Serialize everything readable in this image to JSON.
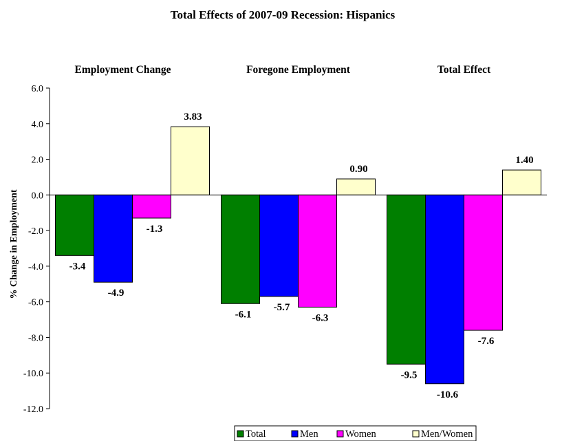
{
  "chart_data": {
    "type": "bar",
    "title": "Total Effects of 2007-09 Recession: Hispanics",
    "ylabel": "% Change in Employment",
    "xlabel": "",
    "ylim": [
      -12.0,
      6.0
    ],
    "yticks": [
      "6.0",
      "4.0",
      "2.0",
      "0.0",
      "-2.0",
      "-4.0",
      "-6.0",
      "-8.0",
      "-10.0",
      "-12.0"
    ],
    "ytick_values": [
      6,
      4,
      2,
      0,
      -2,
      -4,
      -6,
      -8,
      -10,
      -12
    ],
    "categories": [
      "Employment Change",
      "Foregone Employment",
      "Total Effect"
    ],
    "series": [
      {
        "name": "Total",
        "color": "#007f00",
        "values": [
          -3.4,
          -6.1,
          -9.5
        ],
        "labels": [
          "-3.4",
          "-6.1",
          "-9.5"
        ]
      },
      {
        "name": "Men",
        "color": "#0000ff",
        "values": [
          -4.9,
          -5.7,
          -10.6
        ],
        "labels": [
          "-4.9",
          "-5.7",
          "-10.6"
        ]
      },
      {
        "name": "Women",
        "color": "#ff00ff",
        "values": [
          -1.3,
          -6.3,
          -7.6
        ],
        "labels": [
          "-1.3",
          "-6.3",
          "-7.6"
        ]
      },
      {
        "name": "Men/Women",
        "color": "#ffffcc",
        "values": [
          3.83,
          0.9,
          1.4
        ],
        "labels": [
          "3.83",
          "0.90",
          "1.40"
        ]
      }
    ],
    "legend_position": "bottom",
    "grid": false
  }
}
